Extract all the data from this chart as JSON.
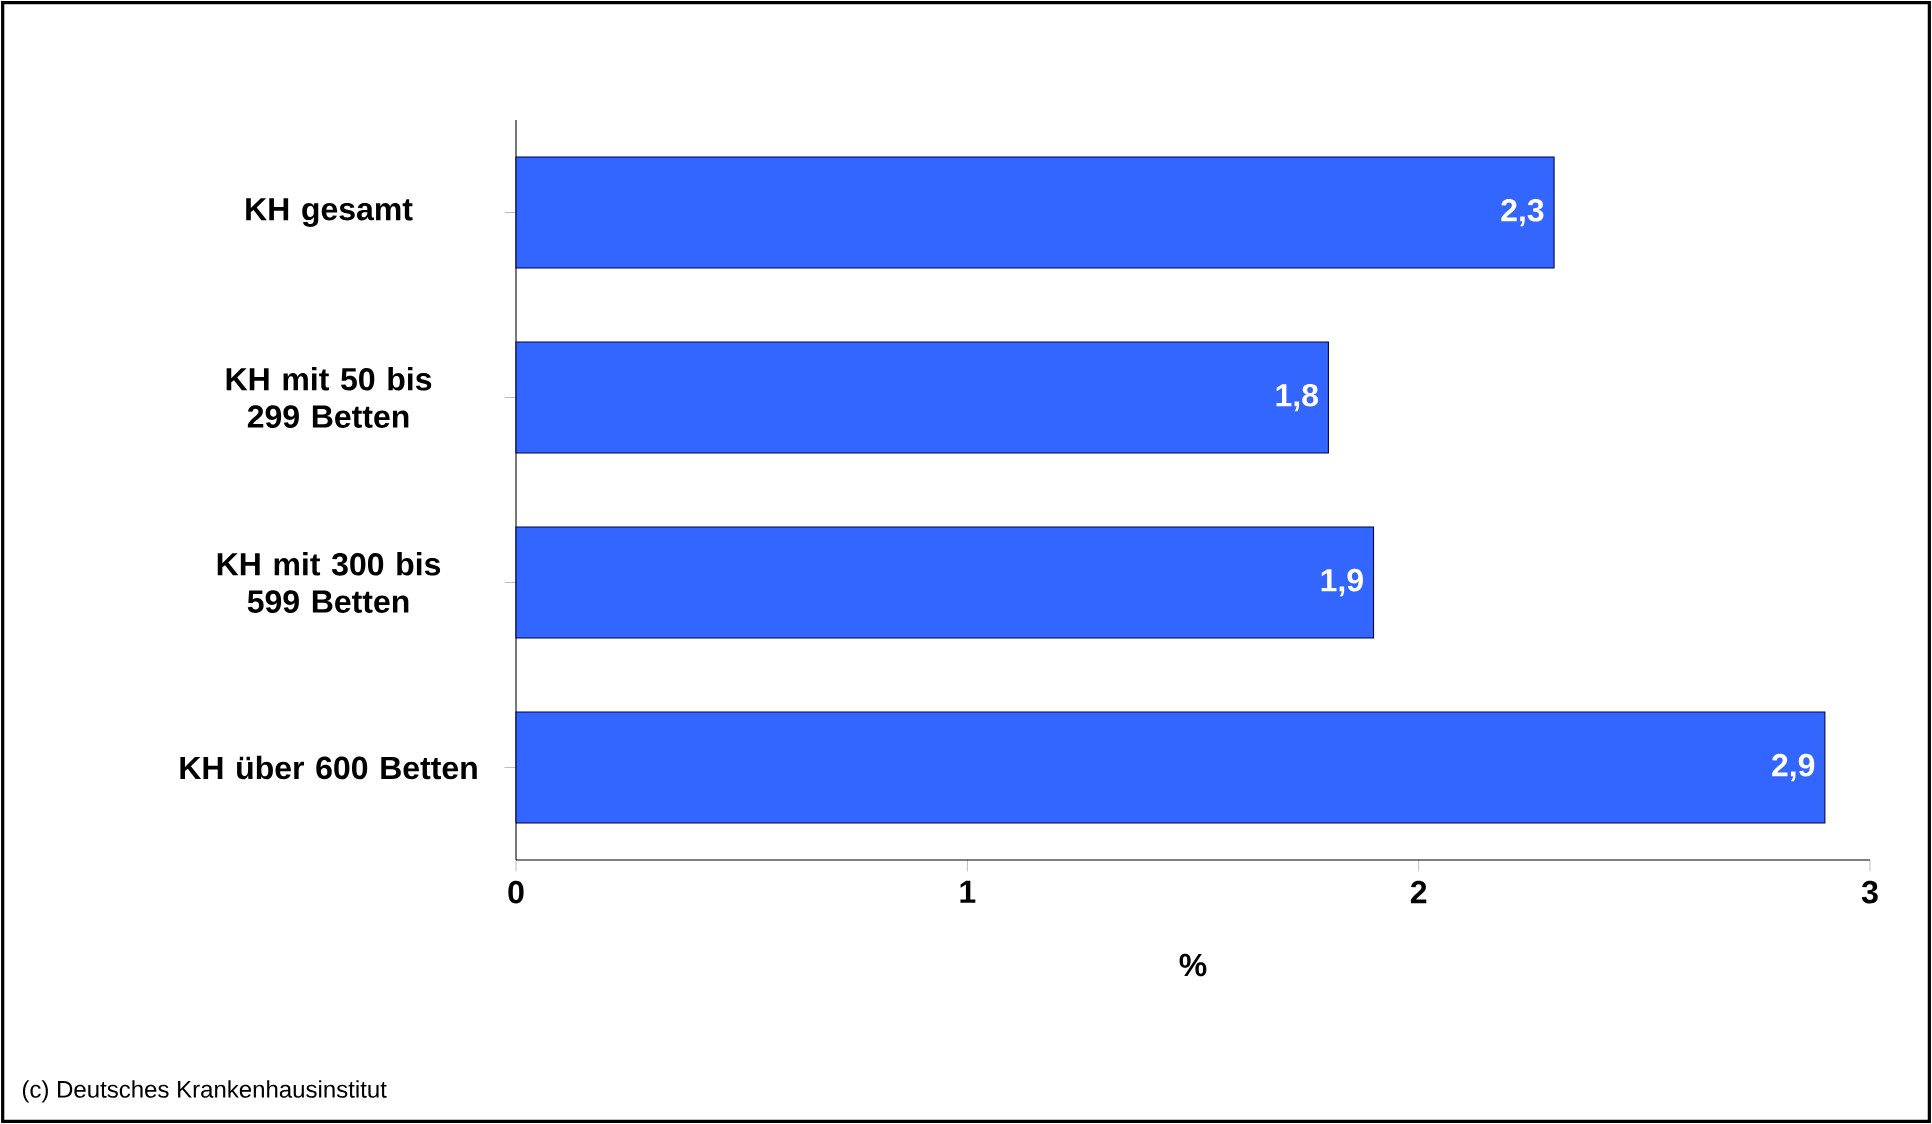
{
  "chart_data": {
    "type": "bar",
    "orientation": "horizontal",
    "categories": [
      "KH gesamt",
      "KH mit 50 bis 299 Betten",
      "KH mit 300 bis 599 Betten",
      "KH über 600 Betten"
    ],
    "values": [
      2.3,
      1.8,
      1.9,
      2.9
    ],
    "color": "#3366ff",
    "value_labels": [
      "2,3",
      "1,8",
      "1,9",
      "2,9"
    ],
    "xlim": [
      0,
      3
    ],
    "xticks": [
      0,
      1,
      2,
      3
    ],
    "xlabel": "%",
    "annotations": [
      "(c) Deutsches Krankenhausinstitut"
    ]
  }
}
